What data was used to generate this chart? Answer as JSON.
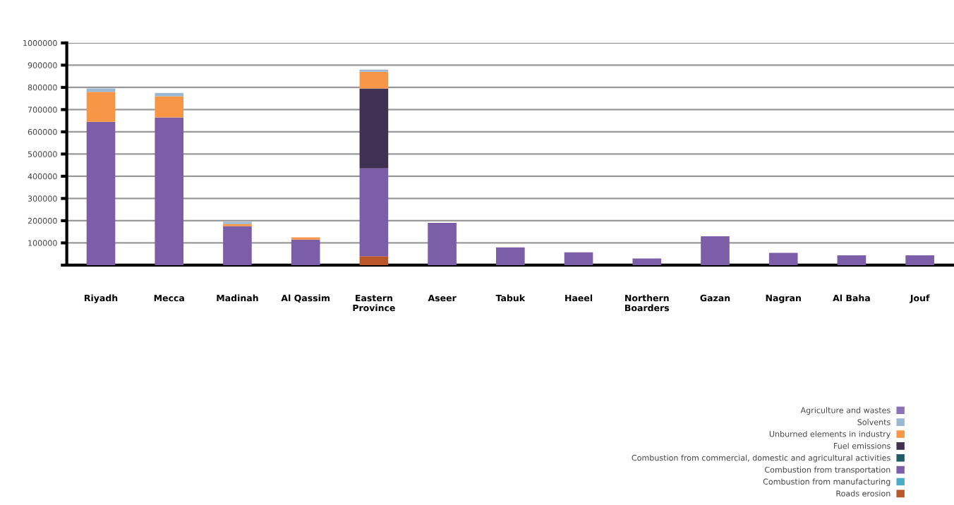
{
  "chart_data": {
    "type": "bar",
    "stacked": true,
    "categories": [
      "Riyadh",
      "Mecca",
      "Madinah",
      "Al Qassim",
      "Eastern\nProvince",
      "Aseer",
      "Tabuk",
      "Haeel",
      "Northern\nBoarders",
      "Gazan",
      "Nagran",
      "Al Baha",
      "Jouf"
    ],
    "series": [
      {
        "name": "Roads erosion",
        "color": "#b9562a",
        "values": [
          null,
          null,
          null,
          null,
          40000,
          null,
          null,
          null,
          null,
          null,
          null,
          null,
          null
        ]
      },
      {
        "name": "Combustion from manufacturing",
        "color": "#4bacc6",
        "values": [
          null,
          null,
          null,
          null,
          null,
          null,
          null,
          null,
          null,
          null,
          null,
          null,
          null
        ]
      },
      {
        "name": "Combustion from transportation",
        "color": "#7b5ea7",
        "values": [
          645000,
          665000,
          175000,
          115000,
          395000,
          190000,
          80000,
          58000,
          30000,
          130000,
          55000,
          44000,
          44000
        ]
      },
      {
        "name": "Combustion from commercial, domestic and agricultural activities",
        "color": "#1f5b66",
        "values": [
          null,
          null,
          null,
          null,
          null,
          null,
          null,
          null,
          null,
          null,
          null,
          null,
          null
        ]
      },
      {
        "name": "Fuel emissions",
        "color": "#403152",
        "values": [
          null,
          null,
          null,
          null,
          360000,
          null,
          null,
          null,
          null,
          null,
          null,
          null,
          null
        ]
      },
      {
        "name": "Unburned elements in industry",
        "color": "#f79646",
        "values": [
          135000,
          95000,
          10000,
          10000,
          75000,
          null,
          null,
          null,
          null,
          null,
          null,
          null,
          null
        ]
      },
      {
        "name": "Solvents",
        "color": "#9bb7d4",
        "values": [
          15000,
          15000,
          10000,
          null,
          10000,
          null,
          null,
          null,
          null,
          null,
          null,
          null,
          null
        ]
      },
      {
        "name": "Agriculture and wastes",
        "color": "#8c73b5",
        "values": [
          null,
          null,
          null,
          null,
          null,
          null,
          null,
          null,
          null,
          null,
          null,
          null,
          null
        ]
      }
    ],
    "ylim": [
      0,
      1000000
    ],
    "yticks": [
      {
        "value": 0,
        "label": null
      },
      100000,
      200000,
      300000,
      400000,
      500000,
      600000,
      700000,
      800000,
      900000,
      1000000
    ],
    "grid": "y",
    "legend": "bottom right"
  }
}
